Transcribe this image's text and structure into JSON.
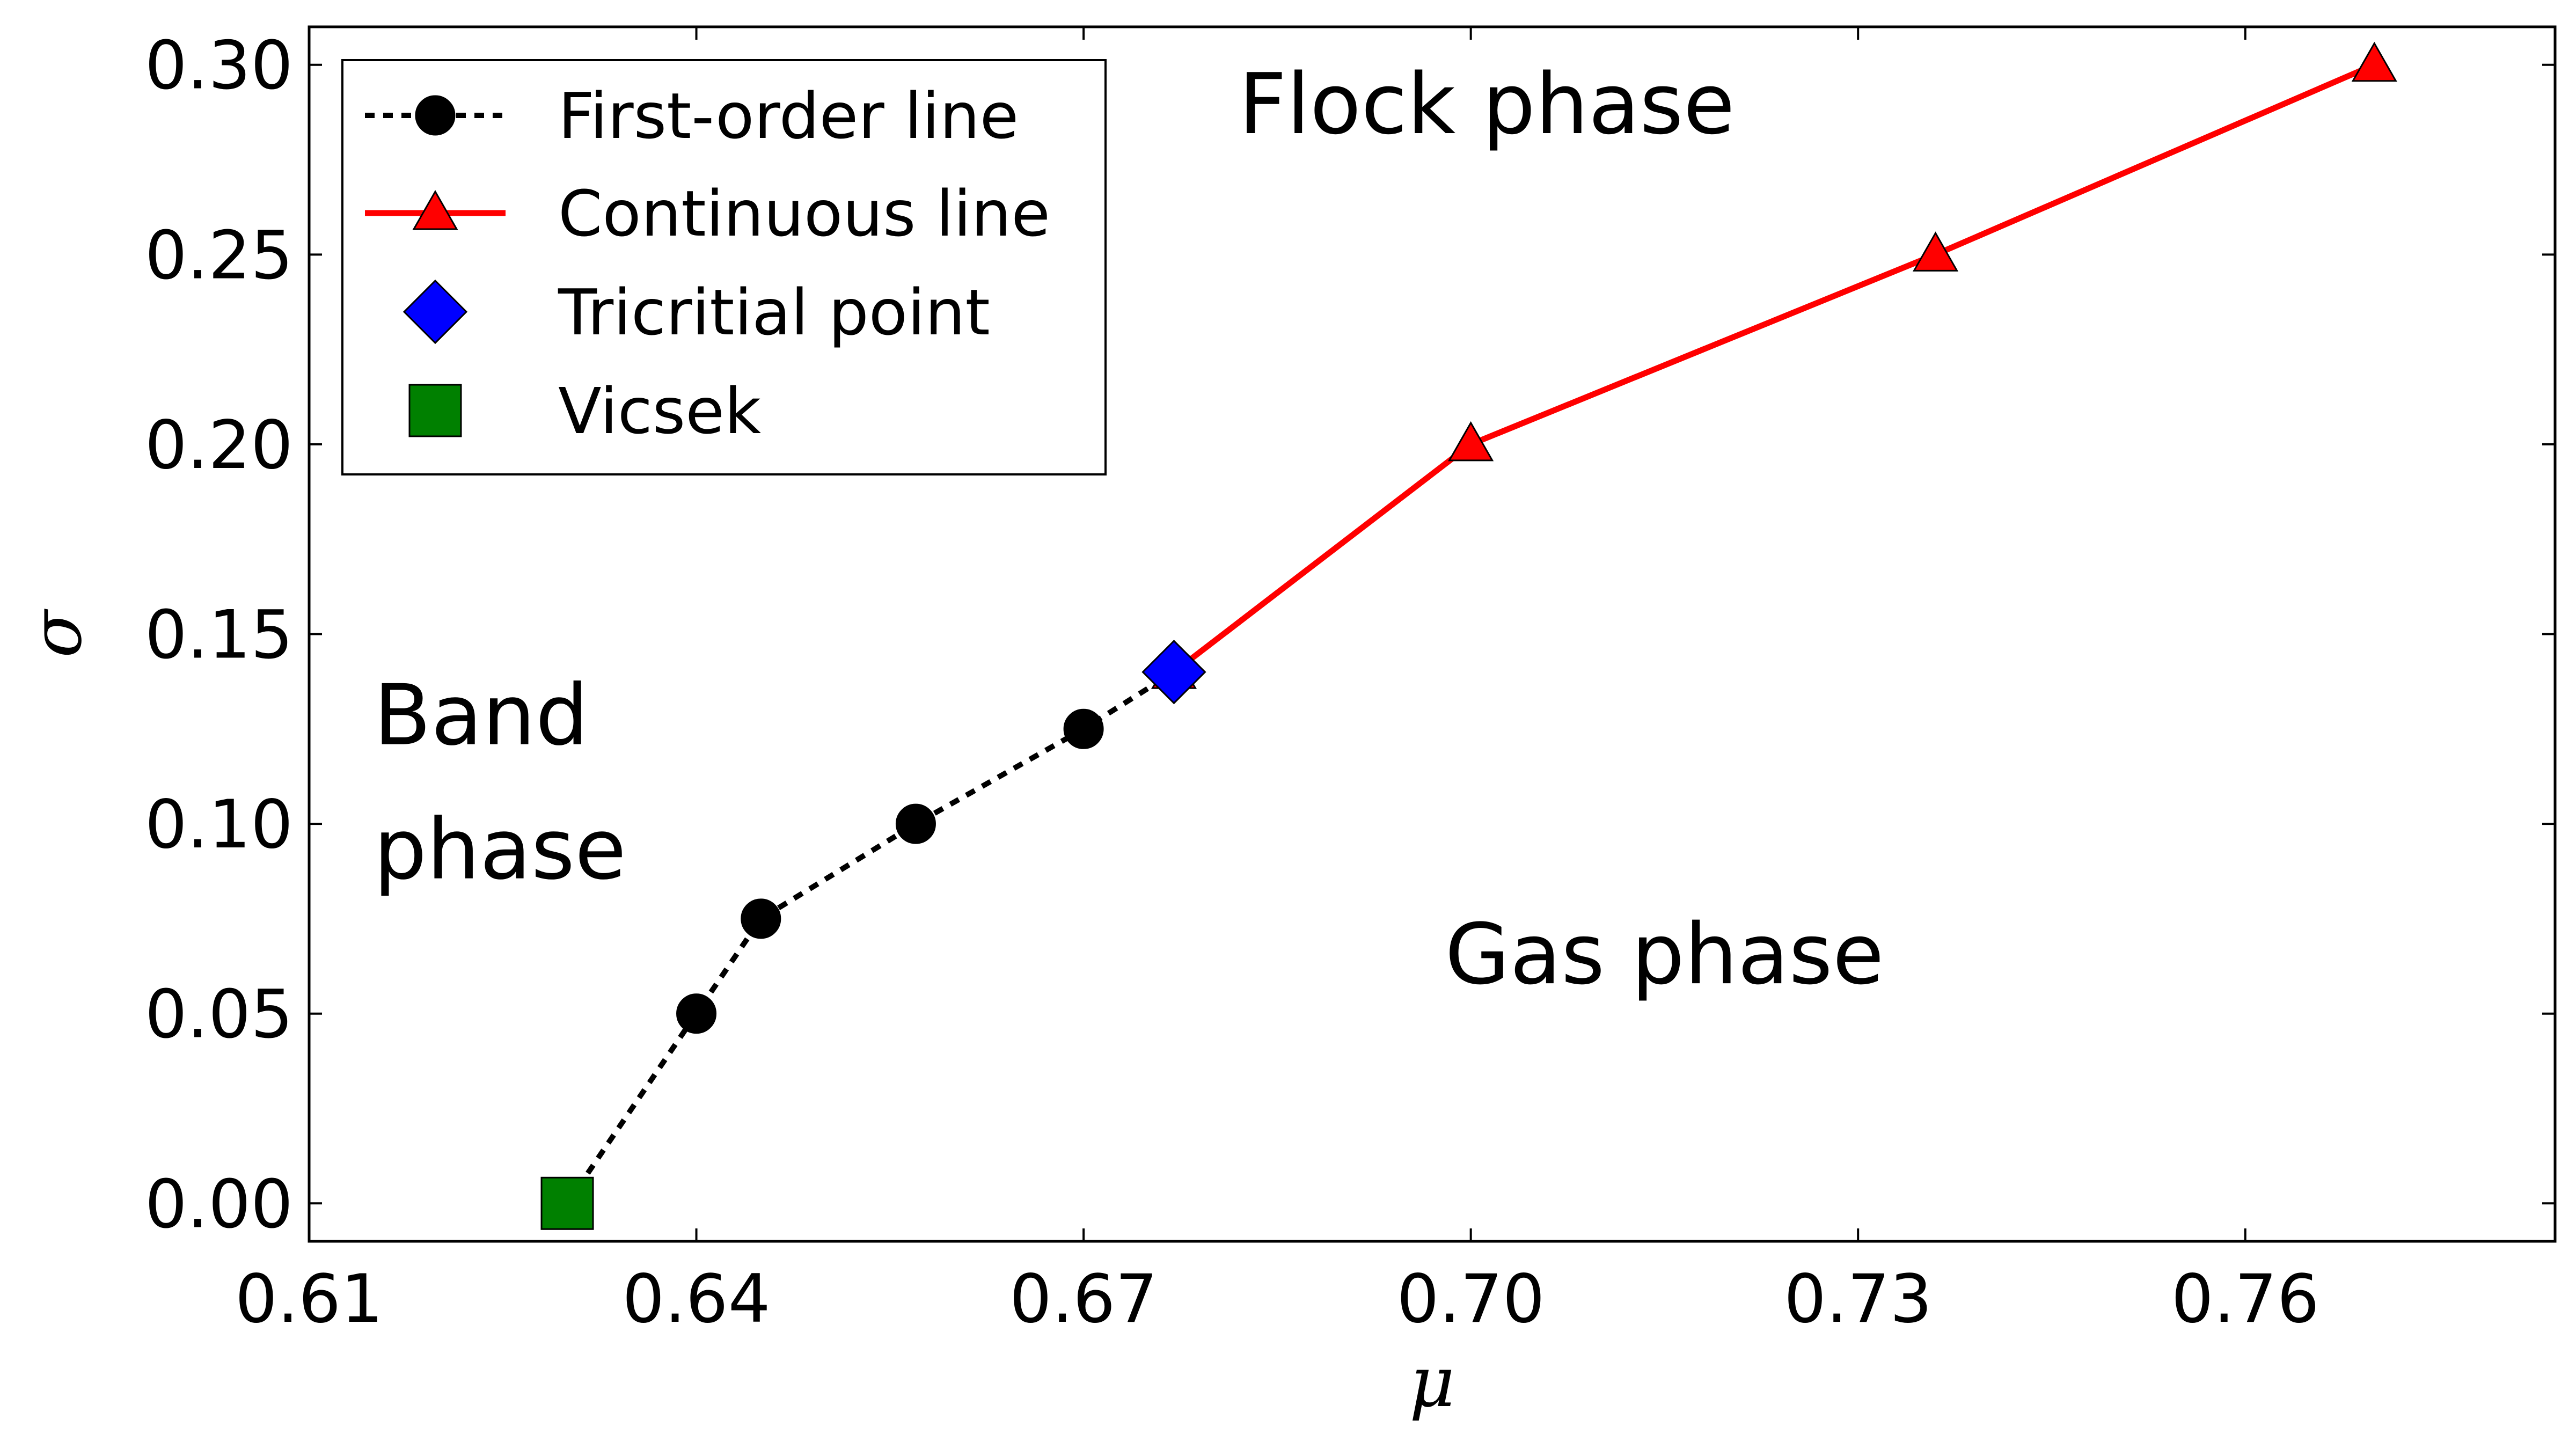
{
  "chart_data": {
    "type": "line",
    "xlabel": "μ",
    "ylabel": "σ",
    "xlim": [
      0.61,
      0.784
    ],
    "ylim": [
      -0.01,
      0.31
    ],
    "x_ticks": [
      "0.61",
      "0.64",
      "0.67",
      "0.70",
      "0.73",
      "0.76"
    ],
    "y_ticks": [
      "0.00",
      "0.05",
      "0.10",
      "0.15",
      "0.20",
      "0.25",
      "0.30"
    ],
    "grid": false,
    "legend_position": "top-left",
    "series": [
      {
        "name": "First-order line",
        "style": "dotted",
        "marker": "circle",
        "color": "#000000",
        "points": [
          [
            0.63,
            0.0
          ],
          [
            0.64,
            0.05
          ],
          [
            0.645,
            0.075
          ],
          [
            0.657,
            0.1
          ],
          [
            0.67,
            0.125
          ],
          [
            0.677,
            0.14
          ]
        ]
      },
      {
        "name": "Continuous line",
        "style": "solid",
        "marker": "triangle",
        "color": "#ff0000",
        "points": [
          [
            0.677,
            0.14
          ],
          [
            0.7,
            0.2
          ],
          [
            0.736,
            0.25
          ],
          [
            0.77,
            0.3
          ]
        ]
      },
      {
        "name": "Tricritial point",
        "style": "none",
        "marker": "diamond",
        "color": "#0000ff",
        "points": [
          [
            0.677,
            0.14
          ]
        ]
      },
      {
        "name": "Vicsek",
        "style": "none",
        "marker": "square",
        "color": "#008000",
        "points": [
          [
            0.63,
            0.0
          ]
        ]
      }
    ],
    "annotations": [
      {
        "lines": [
          "Flock phase"
        ],
        "x": 0.682,
        "y": 0.282
      },
      {
        "lines": [
          "Band",
          "phase"
        ],
        "x": 0.615,
        "y": 0.121
      },
      {
        "lines": [
          "Gas phase"
        ],
        "x": 0.698,
        "y": 0.058
      }
    ]
  }
}
